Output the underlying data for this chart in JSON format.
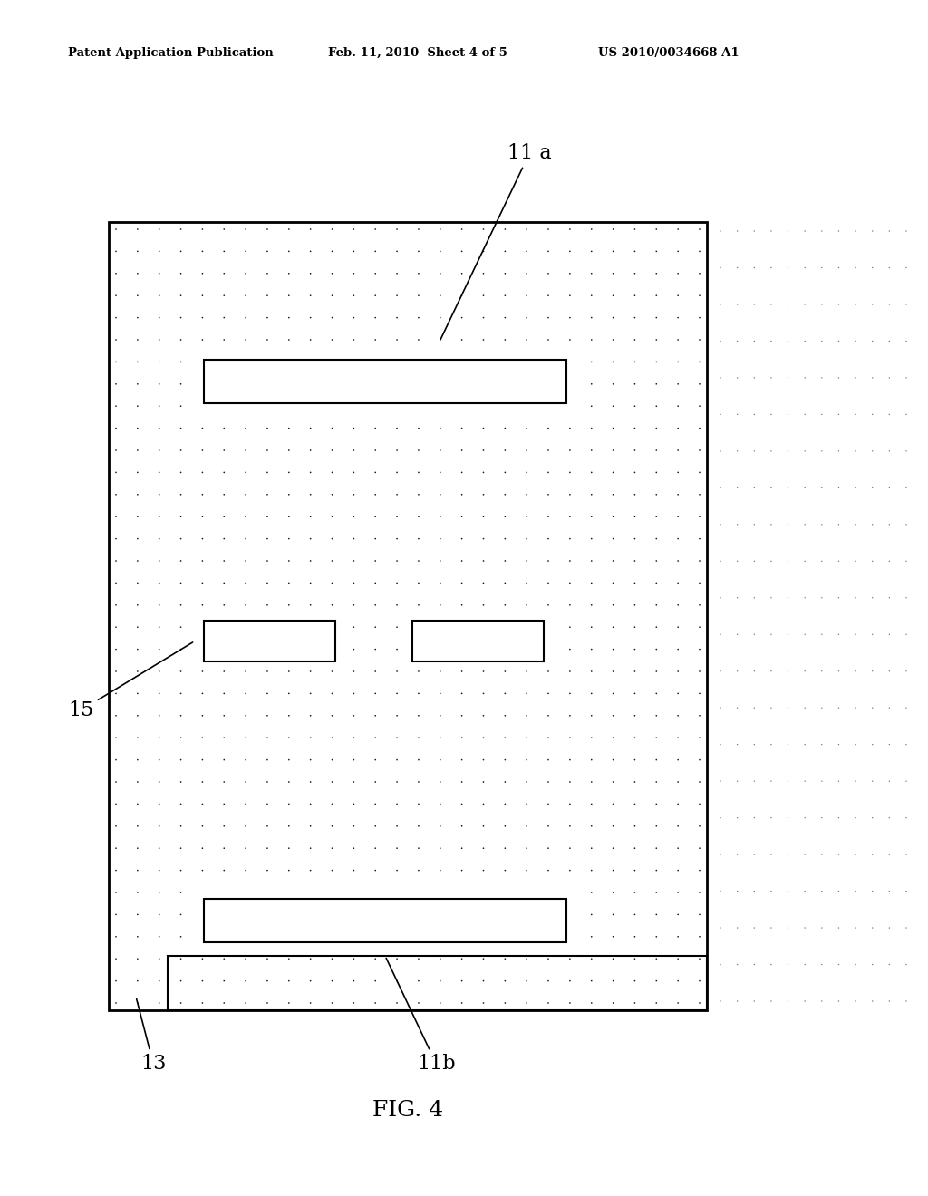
{
  "header_left": "Patent Application Publication",
  "header_mid": "Feb. 11, 2010  Sheet 4 of 5",
  "header_right": "US 2010/0034668 A1",
  "fig_label": "FIG. 4",
  "label_11a": "11 a",
  "label_11b": "11b",
  "label_13": "13",
  "label_15": "15",
  "bg_color": "#ffffff"
}
